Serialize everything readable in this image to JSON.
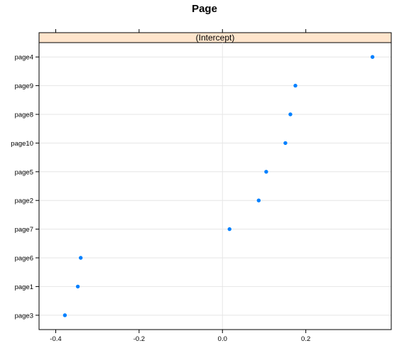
{
  "chart_data": {
    "type": "scatter",
    "title": "Page",
    "panel_strip": "(Intercept)",
    "xlabel": "",
    "ylabel": "",
    "xlim": [
      -0.44,
      0.405
    ],
    "xticks": [
      -0.4,
      -0.2,
      0.0,
      0.2
    ],
    "xtick_labels": [
      "-0.4",
      "-0.2",
      "0.0",
      "0.2"
    ],
    "categories": [
      "page4",
      "page9",
      "page8",
      "page10",
      "page5",
      "page2",
      "page7",
      "page6",
      "page1",
      "page3"
    ],
    "values": [
      0.36,
      0.175,
      0.163,
      0.151,
      0.105,
      0.087,
      0.017,
      -0.34,
      -0.347,
      -0.378
    ],
    "grid": true,
    "colors": {
      "point": "#0080ff",
      "strip_fill": "#ffe5cc",
      "grid": "#e6e6e6",
      "zero_line": "#e6e6e6"
    }
  }
}
